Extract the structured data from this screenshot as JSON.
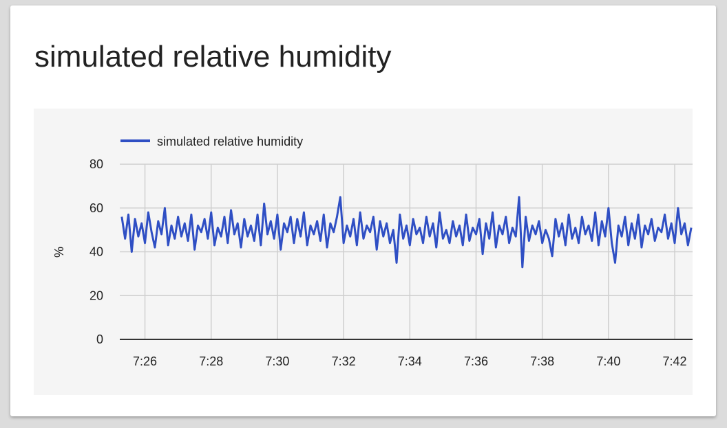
{
  "chart_data": {
    "type": "line",
    "title": "simulated relative humidity",
    "y_label": "%",
    "x": [
      445.3,
      445.4,
      445.5,
      445.6,
      445.7,
      445.8,
      445.9,
      446.0,
      446.1,
      446.2,
      446.3,
      446.4,
      446.5,
      446.6,
      446.7,
      446.8,
      446.9,
      447.0,
      447.1,
      447.2,
      447.3,
      447.4,
      447.5,
      447.6,
      447.7,
      447.8,
      447.9,
      448.0,
      448.1,
      448.2,
      448.3,
      448.4,
      448.5,
      448.6,
      448.7,
      448.8,
      448.9,
      449.0,
      449.1,
      449.2,
      449.3,
      449.4,
      449.5,
      449.6,
      449.7,
      449.8,
      449.9,
      450.0,
      450.1,
      450.2,
      450.3,
      450.4,
      450.5,
      450.6,
      450.7,
      450.8,
      450.9,
      451.0,
      451.1,
      451.2,
      451.3,
      451.4,
      451.5,
      451.6,
      451.7,
      451.8,
      451.9,
      452.0,
      452.1,
      452.2,
      452.3,
      452.4,
      452.5,
      452.6,
      452.7,
      452.8,
      452.9,
      453.0,
      453.1,
      453.2,
      453.3,
      453.4,
      453.5,
      453.6,
      453.7,
      453.8,
      453.9,
      454.0,
      454.1,
      454.2,
      454.3,
      454.4,
      454.5,
      454.6,
      454.7,
      454.8,
      454.9,
      455.0,
      455.1,
      455.2,
      455.3,
      455.4,
      455.5,
      455.6,
      455.7,
      455.8,
      455.9,
      456.0,
      456.1,
      456.2,
      456.3,
      456.4,
      456.5,
      456.6,
      456.7,
      456.8,
      456.9,
      457.0,
      457.1,
      457.2,
      457.3,
      457.4,
      457.5,
      457.6,
      457.7,
      457.8,
      457.9,
      458.0,
      458.1,
      458.2,
      458.3,
      458.4,
      458.5,
      458.6,
      458.7,
      458.8,
      458.9,
      459.0,
      459.1,
      459.2,
      459.3,
      459.4,
      459.5,
      459.6,
      459.7,
      459.8,
      459.9,
      460.0,
      460.1,
      460.2,
      460.3,
      460.4,
      460.5,
      460.6,
      460.7,
      460.8,
      460.9,
      461.0,
      461.1,
      461.2,
      461.3,
      461.4,
      461.5,
      461.6,
      461.7,
      461.8,
      461.9,
      462.0,
      462.1,
      462.2,
      462.3,
      462.4,
      462.5
    ],
    "series": [
      {
        "name": "simulated relative humidity",
        "color": "#2f4fc4",
        "values": [
          56,
          46,
          57,
          40,
          55,
          47,
          53,
          44,
          58,
          49,
          42,
          54,
          48,
          60,
          43,
          52,
          46,
          56,
          47,
          53,
          45,
          57,
          41,
          52,
          49,
          55,
          46,
          58,
          43,
          51,
          47,
          56,
          44,
          59,
          48,
          53,
          42,
          55,
          47,
          52,
          45,
          57,
          43,
          62,
          48,
          54,
          46,
          57,
          41,
          53,
          49,
          56,
          44,
          55,
          47,
          58,
          43,
          52,
          48,
          54,
          45,
          57,
          42,
          53,
          49,
          56,
          65,
          44,
          52,
          47,
          55,
          43,
          58,
          46,
          52,
          49,
          56,
          41,
          54,
          47,
          53,
          44,
          50,
          35,
          57,
          46,
          52,
          43,
          55,
          48,
          51,
          44,
          56,
          47,
          53,
          42,
          58,
          46,
          50,
          44,
          54,
          47,
          52,
          43,
          57,
          45,
          51,
          48,
          55,
          39,
          53,
          46,
          58,
          42,
          52,
          48,
          56,
          44,
          51,
          47,
          65,
          33,
          56,
          45,
          52,
          48,
          54,
          44,
          50,
          46,
          38,
          55,
          47,
          53,
          43,
          57,
          46,
          51,
          44,
          56,
          48,
          52,
          45,
          58,
          43,
          54,
          47,
          60,
          44,
          35,
          52,
          47,
          56,
          43,
          53,
          46,
          57,
          42,
          52,
          48,
          55,
          45,
          51,
          49,
          57,
          46,
          53,
          44,
          60,
          48,
          53,
          43,
          51
        ]
      }
    ],
    "xlim": [
      445.24,
      462.54
    ],
    "xticks": [
      {
        "value": 446,
        "label": "7:26"
      },
      {
        "value": 448,
        "label": "7:28"
      },
      {
        "value": 450,
        "label": "7:30"
      },
      {
        "value": 452,
        "label": "7:32"
      },
      {
        "value": 454,
        "label": "7:34"
      },
      {
        "value": 456,
        "label": "7:36"
      },
      {
        "value": 458,
        "label": "7:38"
      },
      {
        "value": 460,
        "label": "7:40"
      },
      {
        "value": 462,
        "label": "7:42"
      }
    ],
    "ylim": [
      0,
      80
    ],
    "yticks": [
      0,
      20,
      40,
      60,
      80
    ],
    "grid": true
  }
}
